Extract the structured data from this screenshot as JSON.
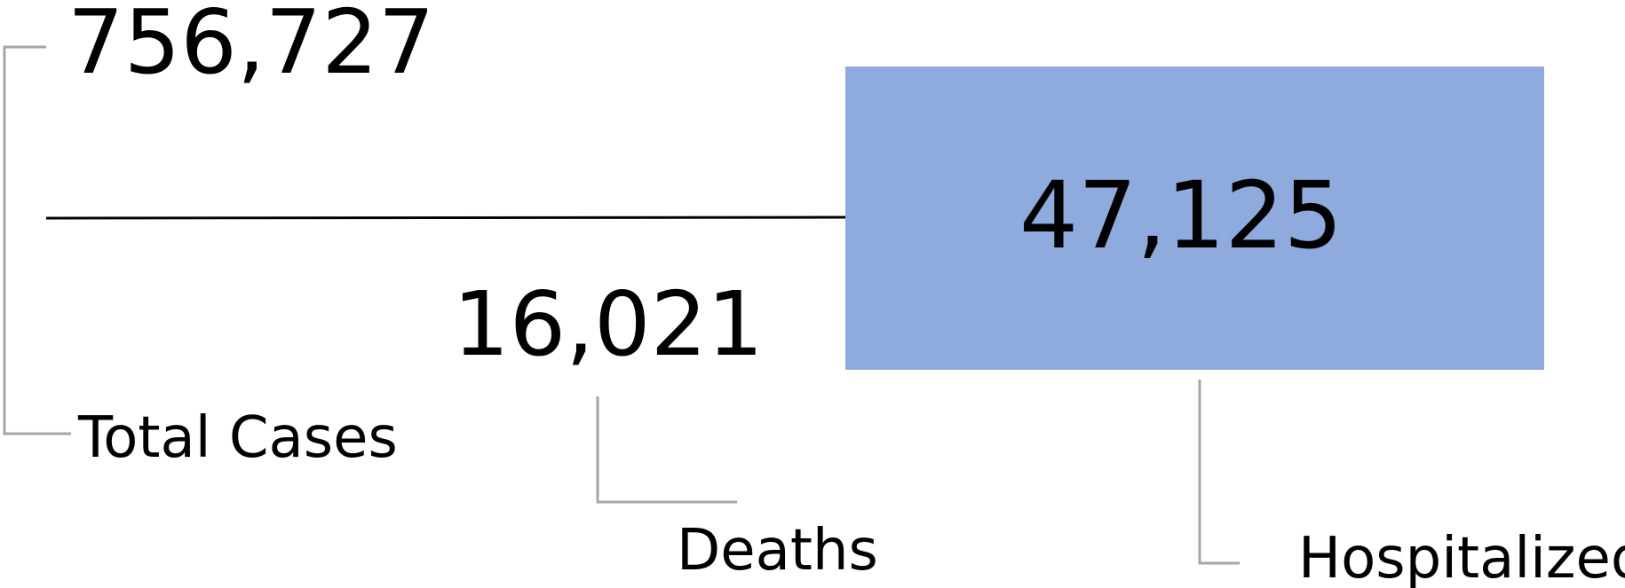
{
  "chart_data": {
    "type": "bar",
    "title": "",
    "categories": [
      "Total Cases",
      "Deaths",
      "Hospitalized"
    ],
    "values": [
      756727,
      16021,
      47125
    ],
    "value_labels": [
      "756,727",
      "16,021",
      "47,125"
    ],
    "bar_color": "#8faadc",
    "leader_color": "#a6a6a6",
    "legend": "none",
    "grid": false
  }
}
